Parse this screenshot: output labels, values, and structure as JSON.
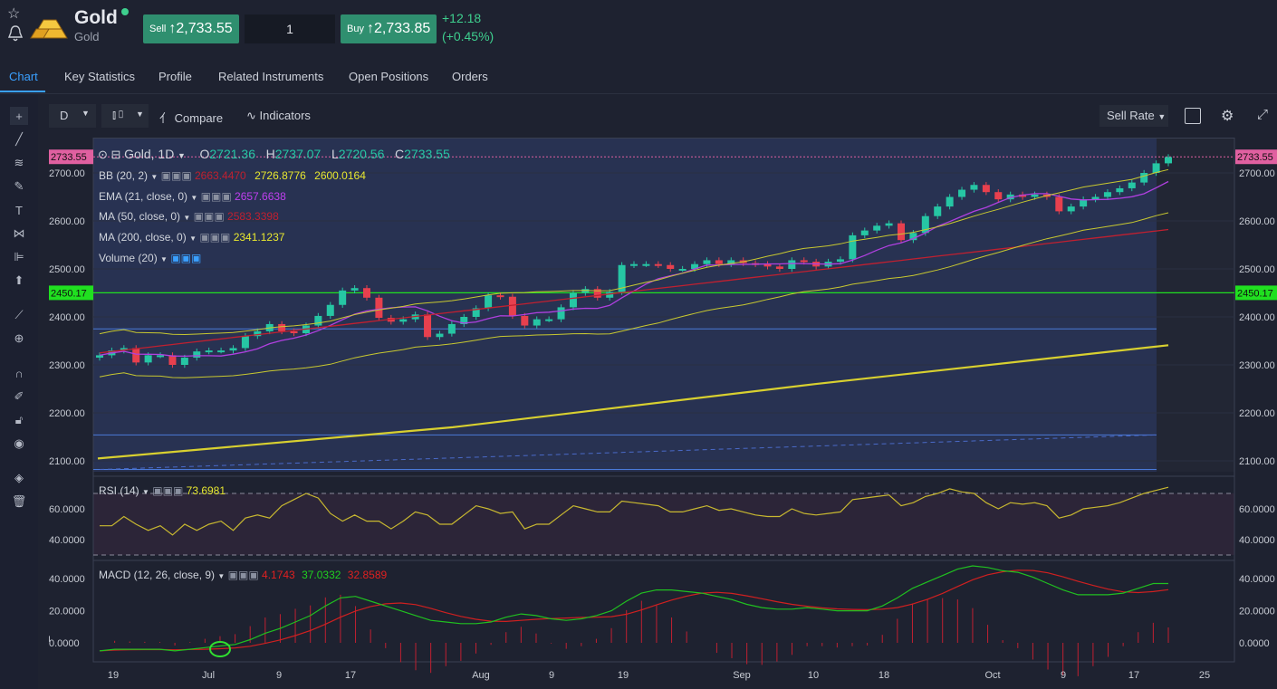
{
  "header": {
    "title": "Gold",
    "subtitle": "Gold",
    "sell_label": "Sell",
    "sell_price": "2,733.55",
    "quantity": "1",
    "buy_label": "Buy",
    "buy_price": "2,733.85",
    "change": "+12.18",
    "change_pct": "(+0.45%)"
  },
  "tabs": [
    "Chart",
    "Key Statistics",
    "Profile",
    "Related Instruments",
    "Open Positions",
    "Orders"
  ],
  "toolbar": {
    "interval": "D",
    "compare": "Compare",
    "indicators": "Indicators",
    "price_type": "Sell Rate"
  },
  "legend": {
    "symbol": "Gold, 1D",
    "open_label": "O",
    "open": "2721.36",
    "high_label": "H",
    "high": "2737.07",
    "low_label": "L",
    "low": "2720.56",
    "close_label": "C",
    "close": "2733.55",
    "bb_label": "BB (20, 2)",
    "bb_mid": "2663.4470",
    "bb_upper": "2726.8776",
    "bb_lower": "2600.0164",
    "ema_label": "EMA (21, close, 0)",
    "ema_value": "2657.6638",
    "ma50_label": "MA (50, close, 0)",
    "ma50_value": "2583.3398",
    "ma200_label": "MA (200, close, 0)",
    "ma200_value": "2341.1237",
    "volume_label": "Volume (20)",
    "rsi_label": "RSI (14)",
    "rsi_value": "73.6981",
    "macd_label": "MACD (12, 26, close, 9)",
    "macd_hist": "4.1743",
    "macd_value": "37.0332",
    "macd_signal": "32.8589"
  },
  "price_axis": [
    "2700.00",
    "2600.00",
    "2500.00",
    "2400.00",
    "2300.00",
    "2200.00",
    "2100.00"
  ],
  "rsi_axis": [
    "60.0000",
    "40.0000"
  ],
  "macd_axis": [
    "40.0000",
    "20.0000",
    "0.0000"
  ],
  "time_axis": [
    "19",
    "Jul",
    "9",
    "17",
    "Aug",
    "9",
    "19",
    "Sep",
    "10",
    "18",
    "Oct",
    "9",
    "17",
    "25"
  ],
  "price_tags": {
    "current": "2733.55",
    "hline": "2450.17"
  },
  "colors": {
    "up": "#26c6a4",
    "down": "#e8404e",
    "bb": "#c8c830",
    "ema": "#b040e0",
    "ma50": "#c02030",
    "ma200": "#d8d030",
    "rsi": "#c8b830",
    "macd": "#20c020",
    "signal": "#d02020",
    "hline": "#20e020",
    "accent": "#3aa0ff"
  }
}
